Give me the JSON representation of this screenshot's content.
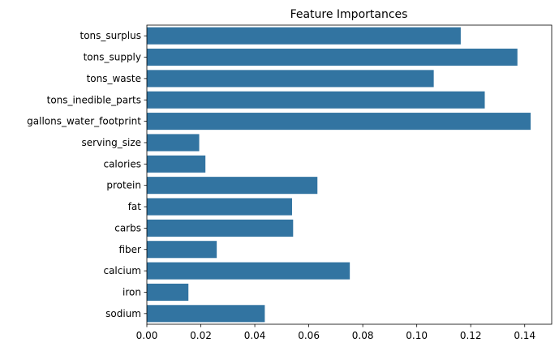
{
  "chart_data": {
    "type": "bar",
    "orientation": "horizontal",
    "title": "Feature Importances",
    "xlabel": "",
    "ylabel": "",
    "categories": [
      "tons_surplus",
      "tons_supply",
      "tons_waste",
      "tons_inedible_parts",
      "gallons_water_footprint",
      "serving_size",
      "calories",
      "protein",
      "fat",
      "carbs",
      "fiber",
      "calcium",
      "iron",
      "sodium"
    ],
    "values": [
      0.1163,
      0.1373,
      0.1063,
      0.1252,
      0.1422,
      0.0194,
      0.0217,
      0.0632,
      0.0538,
      0.0542,
      0.0259,
      0.0752,
      0.0154,
      0.0437
    ],
    "xlim": [
      0,
      0.15
    ],
    "xticks": [
      0.0,
      0.02,
      0.04,
      0.06,
      0.08,
      0.1,
      0.12,
      0.14
    ],
    "xtick_labels": [
      "0.00",
      "0.02",
      "0.04",
      "0.06",
      "0.08",
      "0.10",
      "0.12",
      "0.14"
    ],
    "bar_color": "#3274a1",
    "grid": false,
    "legend": "none"
  }
}
